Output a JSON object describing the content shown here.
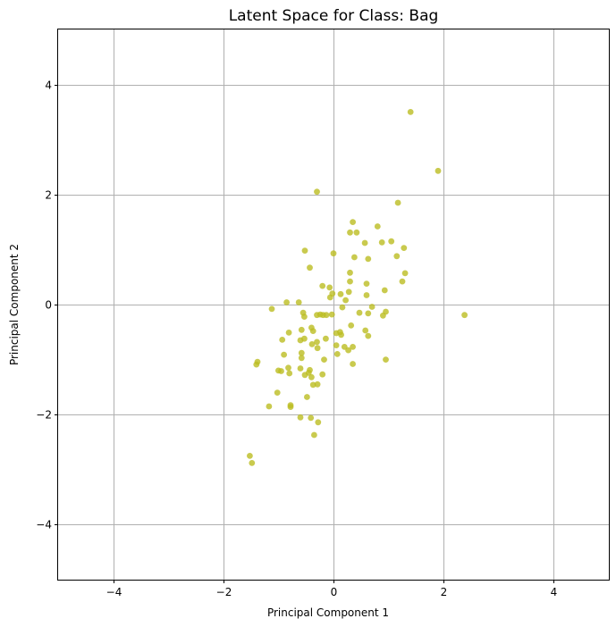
{
  "chart_data": {
    "type": "scatter",
    "title": "Latent Space for Class: Bag",
    "xlabel": "Principal Component 1",
    "ylabel": "Principal Component 2",
    "xlim": [
      -5,
      5
    ],
    "ylim": [
      -5,
      5
    ],
    "xticks": [
      -4,
      -2,
      0,
      2,
      4
    ],
    "yticks": [
      -4,
      -2,
      0,
      2,
      4
    ],
    "xtick_labels": [
      "−4",
      "−2",
      "0",
      "2",
      "4"
    ],
    "ytick_labels": [
      "−4",
      "−2",
      "0",
      "2",
      "4"
    ],
    "grid": true,
    "legend": "none",
    "colors": {
      "point": "#bcbd22",
      "grid": "#b0b0b0"
    },
    "series": [
      {
        "points": [
          [
            1.4,
            3.5
          ],
          [
            1.9,
            2.43
          ],
          [
            -0.3,
            2.05
          ],
          [
            1.17,
            1.85
          ],
          [
            0.35,
            1.5
          ],
          [
            0.8,
            1.42
          ],
          [
            0.3,
            1.31
          ],
          [
            0.42,
            1.31
          ],
          [
            1.05,
            1.15
          ],
          [
            0.57,
            1.12
          ],
          [
            0.88,
            1.13
          ],
          [
            1.28,
            1.03
          ],
          [
            -0.52,
            0.98
          ],
          [
            0.0,
            0.93
          ],
          [
            1.15,
            0.88
          ],
          [
            0.38,
            0.86
          ],
          [
            0.63,
            0.83
          ],
          [
            -0.43,
            0.67
          ],
          [
            0.3,
            0.58
          ],
          [
            1.3,
            0.57
          ],
          [
            0.3,
            0.42
          ],
          [
            1.25,
            0.42
          ],
          [
            0.6,
            0.38
          ],
          [
            -0.2,
            0.34
          ],
          [
            -0.07,
            0.31
          ],
          [
            0.93,
            0.26
          ],
          [
            0.28,
            0.23
          ],
          [
            -0.02,
            0.2
          ],
          [
            0.13,
            0.19
          ],
          [
            0.6,
            0.17
          ],
          [
            -0.06,
            0.13
          ],
          [
            0.22,
            0.08
          ],
          [
            -0.85,
            0.04
          ],
          [
            -0.63,
            0.04
          ],
          [
            0.7,
            -0.04
          ],
          [
            0.16,
            -0.05
          ],
          [
            -1.12,
            -0.08
          ],
          [
            -0.55,
            -0.15
          ],
          [
            0.47,
            -0.15
          ],
          [
            0.95,
            -0.13
          ],
          [
            0.63,
            -0.16
          ],
          [
            -0.24,
            -0.18
          ],
          [
            -0.03,
            -0.18
          ],
          [
            -0.19,
            -0.19
          ],
          [
            -0.53,
            -0.22
          ],
          [
            2.38,
            -0.19
          ],
          [
            0.9,
            -0.2
          ],
          [
            -0.3,
            -0.19
          ],
          [
            -0.13,
            -0.19
          ],
          [
            0.32,
            -0.38
          ],
          [
            -0.4,
            -0.42
          ],
          [
            -0.58,
            -0.46
          ],
          [
            -0.37,
            -0.48
          ],
          [
            0.05,
            -0.52
          ],
          [
            0.12,
            -0.5
          ],
          [
            0.58,
            -0.47
          ],
          [
            0.14,
            -0.55
          ],
          [
            -0.81,
            -0.51
          ],
          [
            0.63,
            -0.57
          ],
          [
            -0.53,
            -0.62
          ],
          [
            -0.14,
            -0.62
          ],
          [
            -0.6,
            -0.65
          ],
          [
            -0.93,
            -0.64
          ],
          [
            -0.3,
            -0.68
          ],
          [
            -0.39,
            -0.72
          ],
          [
            0.05,
            -0.74
          ],
          [
            0.2,
            -0.77
          ],
          [
            0.35,
            -0.77
          ],
          [
            -0.29,
            -0.79
          ],
          [
            0.27,
            -0.83
          ],
          [
            -0.58,
            -0.88
          ],
          [
            -0.9,
            -0.91
          ],
          [
            0.07,
            -0.9
          ],
          [
            -0.58,
            -0.97
          ],
          [
            -0.17,
            -1.0
          ],
          [
            0.95,
            -1.0
          ],
          [
            -1.38,
            -1.04
          ],
          [
            -1.4,
            -1.09
          ],
          [
            0.35,
            -1.08
          ],
          [
            -0.82,
            -1.15
          ],
          [
            -0.6,
            -1.16
          ],
          [
            -0.43,
            -1.19
          ],
          [
            -0.95,
            -1.21
          ],
          [
            -1.0,
            -1.2
          ],
          [
            -0.45,
            -1.24
          ],
          [
            -0.8,
            -1.25
          ],
          [
            -0.52,
            -1.28
          ],
          [
            -0.2,
            -1.27
          ],
          [
            -0.4,
            -1.32
          ],
          [
            -0.37,
            -1.46
          ],
          [
            -0.29,
            -1.45
          ],
          [
            -1.02,
            -1.6
          ],
          [
            -0.48,
            -1.68
          ],
          [
            -0.78,
            -1.83
          ],
          [
            -0.78,
            -1.86
          ],
          [
            -1.17,
            -1.85
          ],
          [
            -0.6,
            -2.05
          ],
          [
            -0.41,
            -2.06
          ],
          [
            -0.28,
            -2.14
          ],
          [
            -0.35,
            -2.37
          ],
          [
            -1.52,
            -2.75
          ],
          [
            -1.48,
            -2.88
          ]
        ]
      }
    ]
  }
}
